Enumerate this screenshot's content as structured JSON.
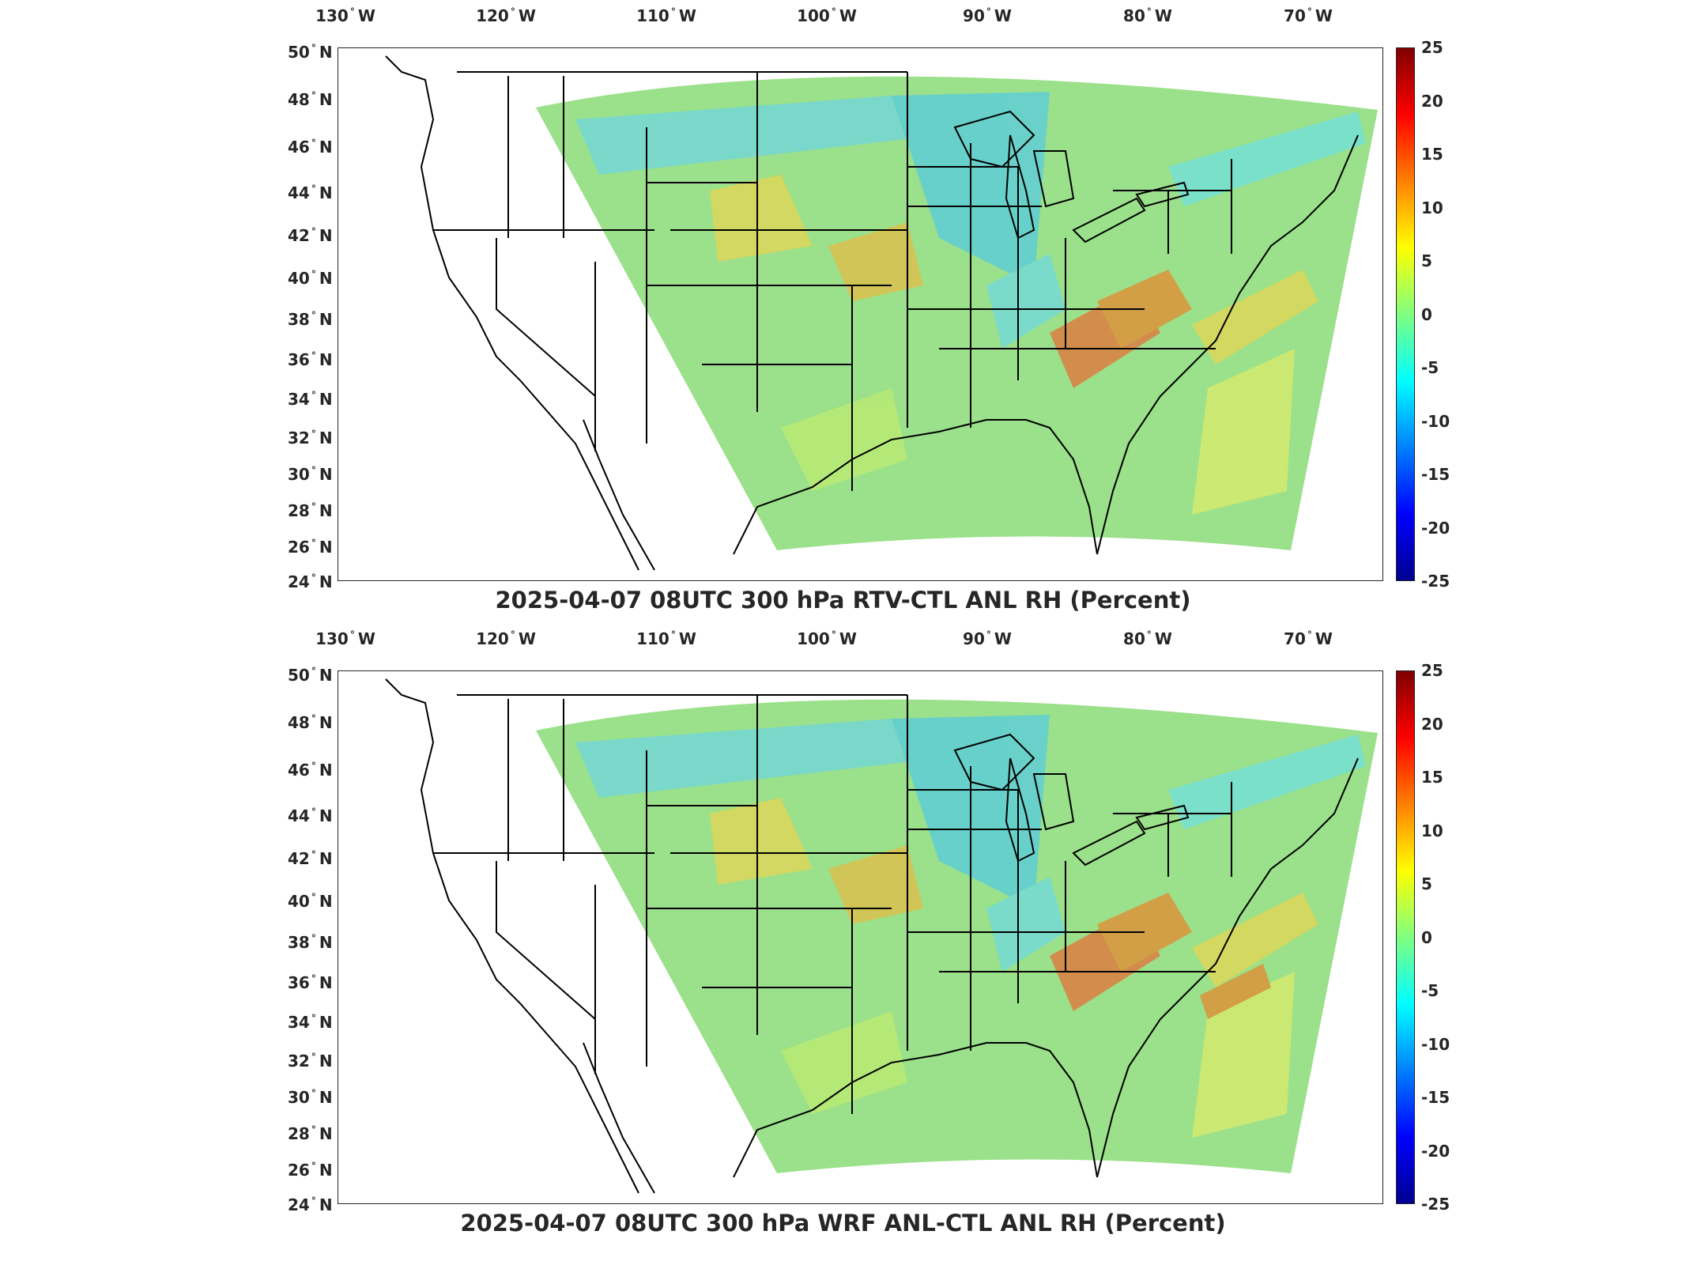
{
  "figure": {
    "panels": [
      {
        "id": "top",
        "title": "2025-04-07 08UTC 300 hPa RTV-CTL ANL RH (Percent)"
      },
      {
        "id": "bottom",
        "title": "2025-04-07 08UTC 300 hPa WRF ANL-CTL ANL RH (Percent)"
      }
    ],
    "longitude_labels": [
      "130",
      "120",
      "110",
      "100",
      "90",
      "80",
      "70"
    ],
    "longitude_suffix": "W",
    "latitude_labels": [
      "50",
      "48",
      "46",
      "44",
      "42",
      "40",
      "38",
      "36",
      "34",
      "32",
      "30",
      "28",
      "26",
      "24"
    ],
    "latitude_suffix": "N",
    "colorbar": {
      "ticks": [
        "25",
        "20",
        "15",
        "10",
        "5",
        "0",
        "-5",
        "-10",
        "-15",
        "-20",
        "-25"
      ],
      "range": [
        -25,
        25
      ],
      "colormap": "jet",
      "colors": [
        "#00008f",
        "#0000ff",
        "#0080ff",
        "#00ffff",
        "#80ff80",
        "#ffff00",
        "#ff8000",
        "#ff0000",
        "#800000"
      ]
    },
    "map": {
      "extent_lon": [
        -133,
        -65
      ],
      "extent_lat": [
        24,
        50
      ],
      "field_background": "#9be08a",
      "line_color": "#000000"
    }
  }
}
